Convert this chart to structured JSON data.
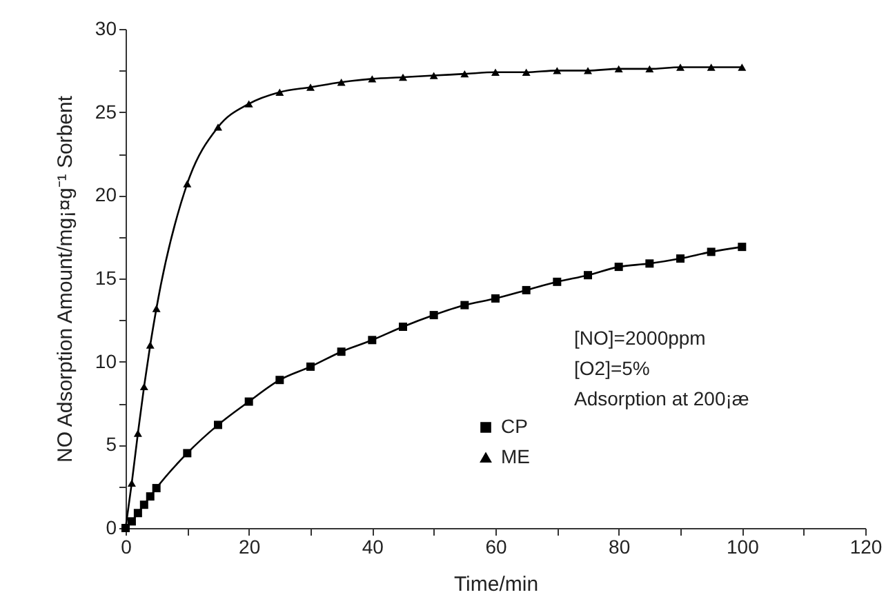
{
  "chart_data": {
    "type": "line",
    "xlabel": "Time/min",
    "ylabel": "NO Adsorption Amount/mg¡¤g⁻¹ Sorbent",
    "annotations": [
      "[NO]=2000ppm",
      "[O2]=5%",
      "Adsorption at 200¡æ"
    ],
    "x": [
      0,
      1,
      2,
      3,
      4,
      5,
      10,
      15,
      20,
      25,
      30,
      35,
      40,
      45,
      50,
      55,
      60,
      65,
      70,
      75,
      80,
      85,
      90,
      95,
      100
    ],
    "series": [
      {
        "name": "CP",
        "color": "#000000",
        "marker": "square",
        "values": [
          0,
          0.4,
          0.9,
          1.4,
          1.9,
          2.4,
          4.5,
          6.2,
          7.6,
          8.9,
          9.7,
          10.6,
          11.3,
          12.1,
          12.8,
          13.4,
          13.8,
          14.3,
          14.8,
          15.2,
          15.7,
          15.9,
          16.2,
          16.6,
          16.9
        ]
      },
      {
        "name": "ME",
        "color": "#000000",
        "marker": "triangle",
        "values": [
          0,
          2.7,
          5.7,
          8.5,
          11,
          13.2,
          20.7,
          24.1,
          25.5,
          26.2,
          26.5,
          26.8,
          27.0,
          27.1,
          27.2,
          27.3,
          27.4,
          27.4,
          27.5,
          27.5,
          27.6,
          27.6,
          27.7,
          27.7,
          27.7
        ]
      }
    ],
    "xlim": [
      0,
      120
    ],
    "ylim": [
      0,
      30
    ],
    "xticks": [
      0,
      {
        "value": 10,
        "label": null
      },
      20,
      {
        "value": 30,
        "label": null
      },
      40,
      {
        "value": 50,
        "label": null
      },
      60,
      {
        "value": 70,
        "label": null
      },
      80,
      {
        "value": 90,
        "label": null
      },
      100,
      {
        "value": 110,
        "label": null
      },
      120
    ],
    "yticks": [
      0,
      {
        "value": 2.5,
        "label": null
      },
      5,
      {
        "value": 7.5,
        "label": null
      },
      10,
      {
        "value": 12.5,
        "label": null
      },
      15,
      {
        "value": 17.5,
        "label": null
      },
      20,
      {
        "value": 22.5,
        "label": null
      },
      25,
      {
        "value": 27.5,
        "label": null
      },
      30
    ],
    "grid": false,
    "legend": "right",
    "line_style": "solid"
  }
}
